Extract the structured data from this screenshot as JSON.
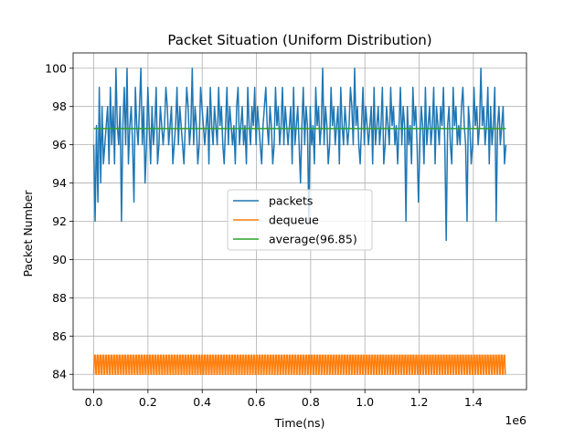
{
  "chart_data": {
    "type": "line",
    "title": "Packet Situation (Uniform Distribution)",
    "xlabel": "Time(ns)",
    "ylabel": "Packet Number",
    "x_offset_label": "1e6",
    "x_tick_values": [
      0.0,
      0.2,
      0.4,
      0.6,
      0.8,
      1.0,
      1.2,
      1.4
    ],
    "x_tick_labels": [
      "0.0",
      "0.2",
      "0.4",
      "0.6",
      "0.8",
      "1.0",
      "1.2",
      "1.4"
    ],
    "y_tick_values": [
      84,
      86,
      88,
      90,
      92,
      94,
      96,
      98,
      100
    ],
    "y_tick_labels": [
      "84",
      "86",
      "88",
      "90",
      "92",
      "94",
      "96",
      "98",
      "100"
    ],
    "xlim": [
      -0.076,
      1.596
    ],
    "ylim": [
      83.2,
      100.8
    ],
    "grid": true,
    "legend_position": "center",
    "series": [
      {
        "name": "packets",
        "color": "#1f77b4",
        "x_range": [
          0.0,
          1.52
        ],
        "values": [
          96,
          92,
          97,
          93,
          99,
          94,
          98,
          95,
          96,
          97,
          98,
          95,
          99,
          96,
          98,
          95,
          100,
          97,
          96,
          98,
          92,
          97,
          99,
          96,
          100,
          95,
          97,
          98,
          96,
          93,
          99,
          97,
          96,
          98,
          100,
          96,
          98,
          94,
          96,
          99,
          97,
          95,
          98,
          96,
          97,
          99,
          95,
          96,
          98,
          97,
          96,
          97,
          99,
          98,
          96,
          97,
          98,
          95,
          96,
          97,
          99,
          96,
          98,
          97,
          96,
          95,
          97,
          99,
          98,
          96,
          97,
          100,
          96,
          98,
          97,
          95,
          96,
          99,
          98,
          97,
          96,
          97,
          98,
          95,
          99,
          97,
          96,
          98,
          97,
          96,
          99,
          97,
          98,
          96,
          95,
          97,
          99,
          96,
          98,
          97,
          96,
          97,
          95,
          98,
          99,
          96,
          97,
          98,
          96,
          97,
          95,
          99,
          97,
          96,
          98,
          97,
          99,
          96,
          98,
          97,
          96,
          95,
          97,
          98,
          99,
          97,
          96,
          98,
          97,
          95,
          96,
          99,
          97,
          98,
          96,
          97,
          99,
          96,
          98,
          97,
          96,
          97,
          98,
          95,
          99,
          96,
          97,
          98,
          96,
          94,
          97,
          99,
          96,
          98,
          97,
          92,
          98,
          96,
          97,
          95,
          99,
          97,
          98,
          96,
          97,
          100,
          96,
          98,
          97,
          95,
          96,
          99,
          97,
          98,
          96,
          97,
          98,
          95,
          99,
          97,
          96,
          98,
          97,
          96,
          97,
          99,
          98,
          96,
          100,
          97,
          98,
          96,
          95,
          97,
          99,
          96,
          98,
          97,
          96,
          97,
          98,
          95,
          99,
          96,
          97,
          98,
          96,
          97,
          99,
          95,
          96,
          98,
          97,
          96,
          99,
          97,
          98,
          96,
          97,
          95,
          97,
          99,
          96,
          98,
          97,
          92,
          98,
          96,
          97,
          95,
          99,
          97,
          98,
          96,
          93,
          96,
          98,
          97,
          95,
          99,
          96,
          97,
          98,
          96,
          97,
          99,
          95,
          98,
          97,
          96,
          98,
          97,
          99,
          96,
          91,
          97,
          98,
          96,
          95,
          99,
          97,
          98,
          96,
          97,
          96,
          98,
          99,
          97,
          96,
          92,
          98,
          97,
          95,
          96,
          99,
          97,
          98,
          96,
          97,
          100,
          97,
          98,
          96,
          97,
          99,
          95,
          98,
          96,
          97,
          99,
          92,
          97,
          98,
          96,
          97,
          98,
          95,
          96
        ]
      },
      {
        "name": "dequeue",
        "color": "#ff7f0e",
        "x_range": [
          0.0,
          1.52
        ],
        "low": 84,
        "high": 85,
        "cycles": 150
      },
      {
        "name": "average(96.85)",
        "color": "#2ca02c",
        "x": [
          0.0,
          1.52
        ],
        "values": [
          96.85,
          96.85
        ]
      }
    ]
  }
}
